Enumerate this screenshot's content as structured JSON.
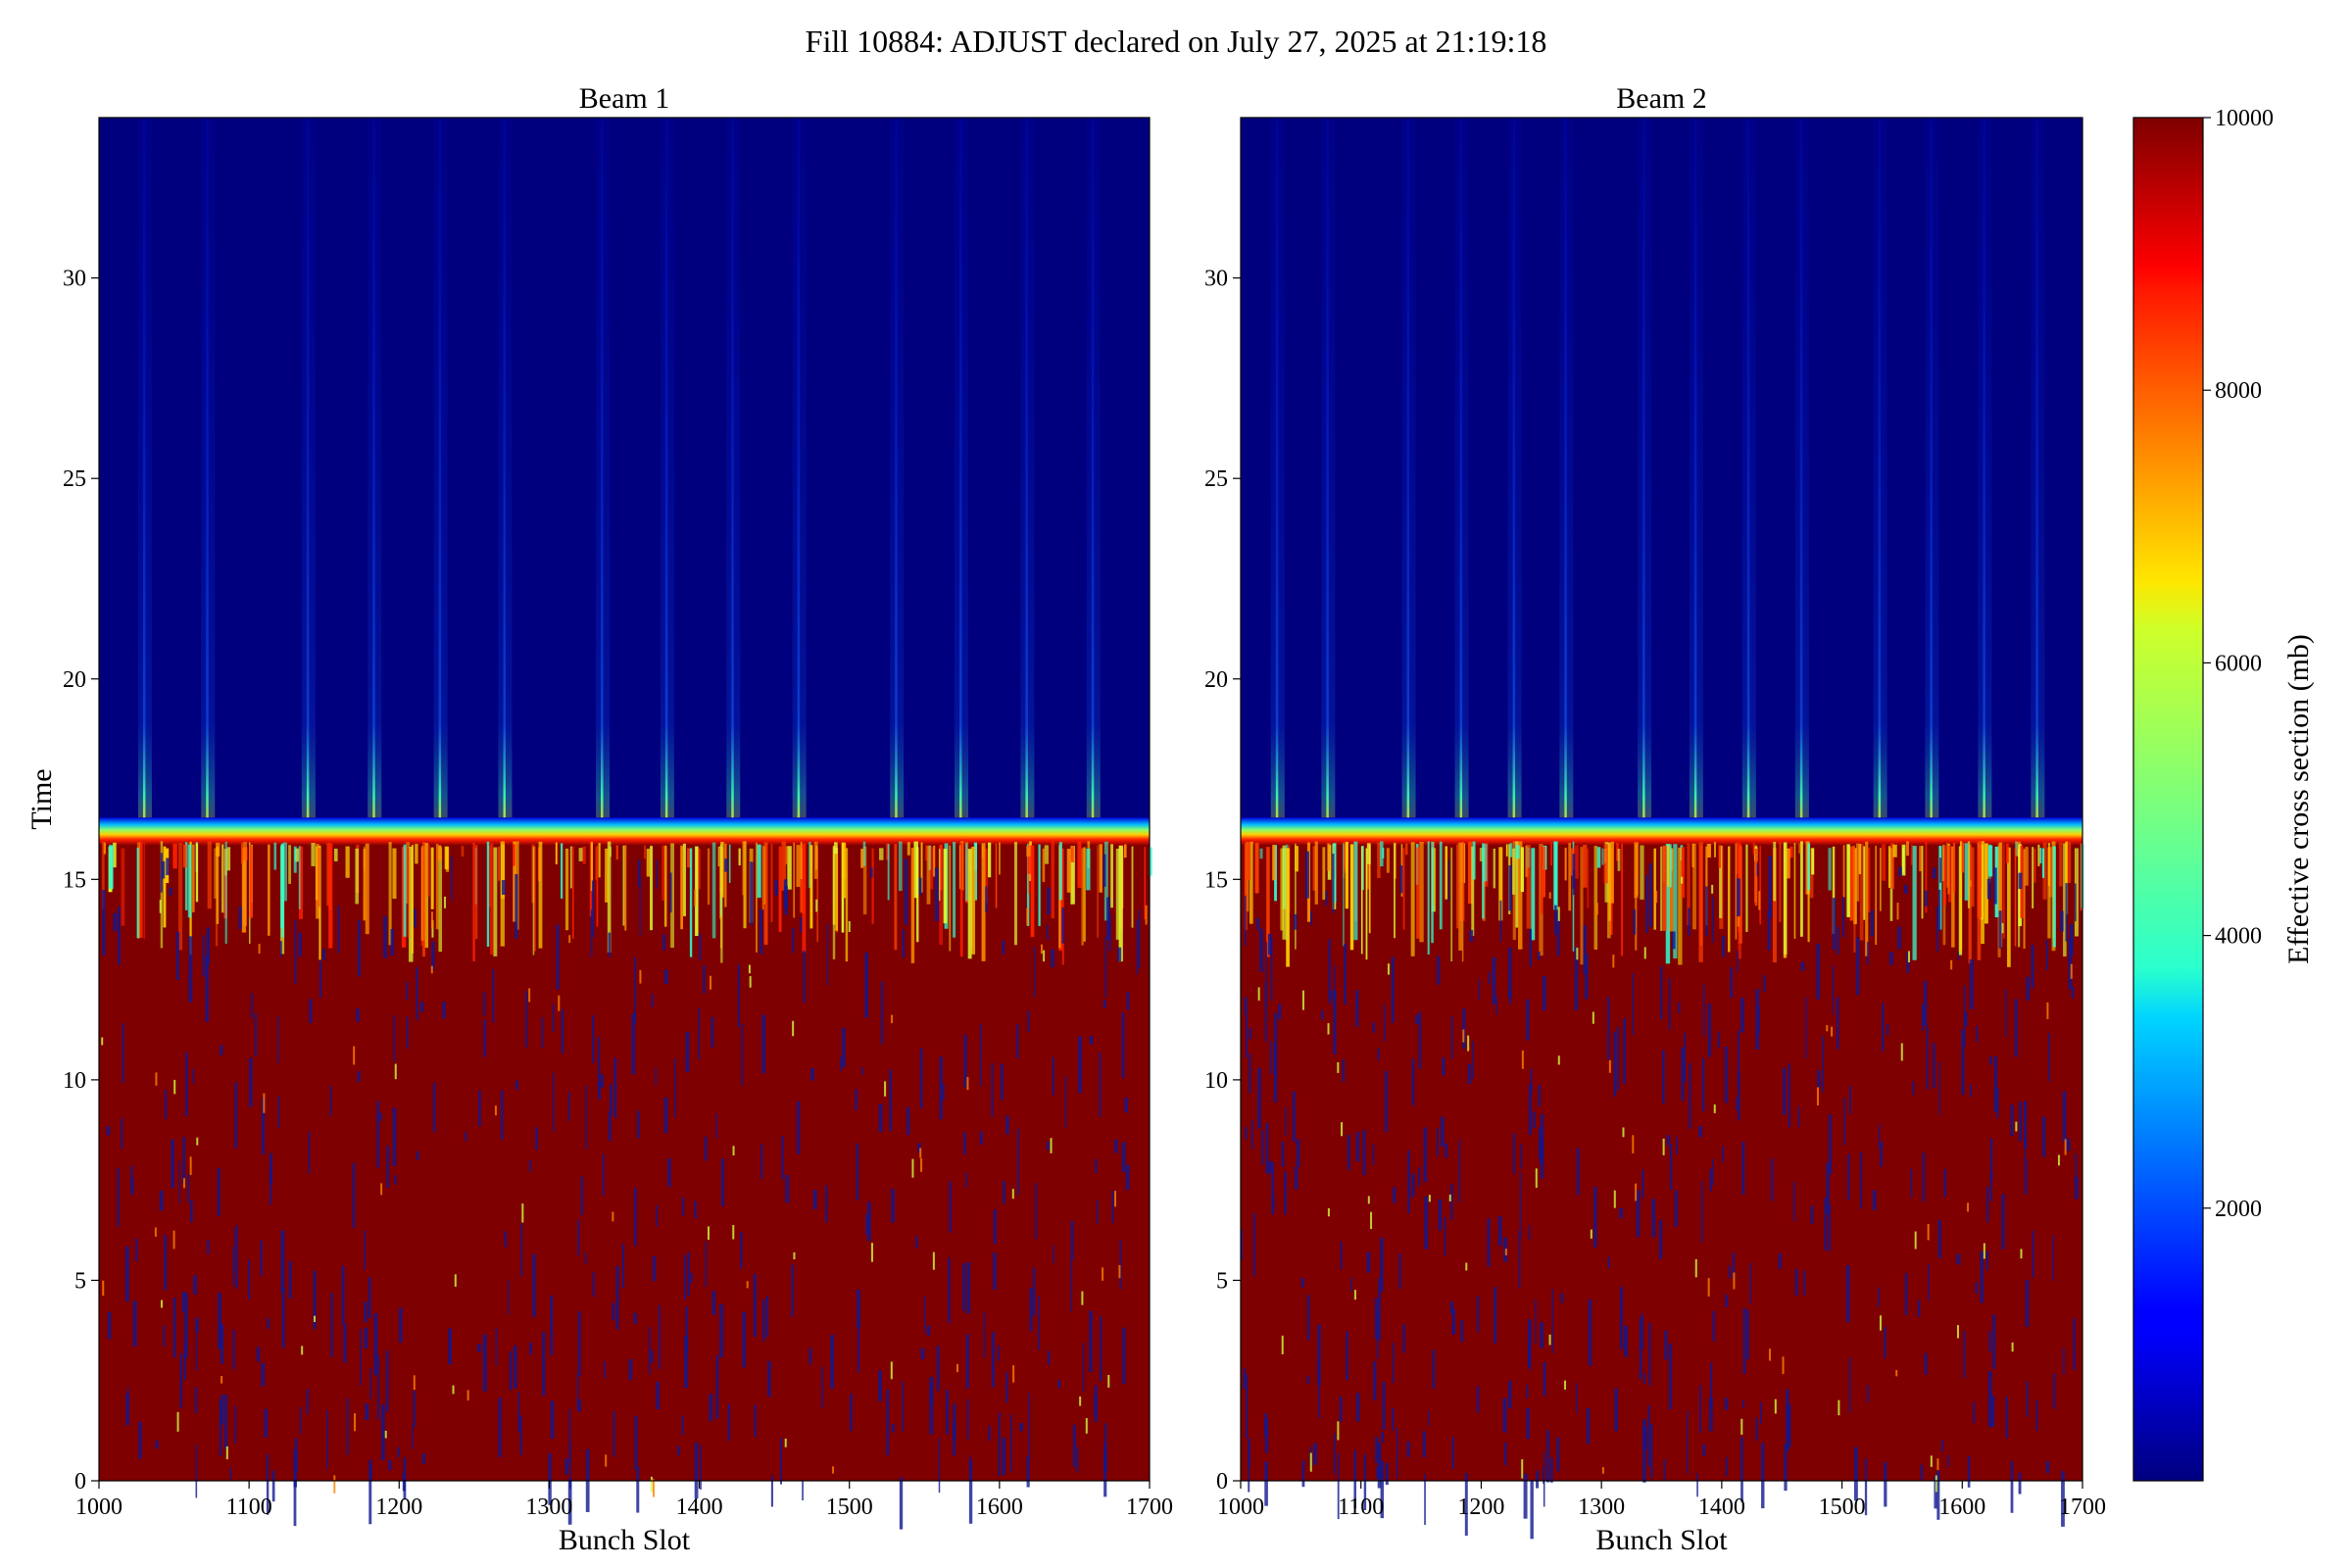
{
  "figure": {
    "title": "Fill 10884: ADJUST declared on July 27, 2025 at 21:19:18"
  },
  "chart_data": [
    {
      "type": "heatmap",
      "title": "Beam 1",
      "xlabel": "Bunch Slot",
      "ylabel": "Time",
      "xlim": [
        1000,
        1700
      ],
      "ylim": [
        0,
        34
      ],
      "xticks": [
        1000,
        1100,
        1200,
        1300,
        1400,
        1500,
        1600,
        1700
      ],
      "yticks": [
        0,
        5,
        10,
        15,
        20,
        25,
        30
      ],
      "colormap": "jet",
      "color_range": [
        0,
        10000
      ],
      "transition_time": 16.2,
      "value_below_transition": 10000,
      "value_above_transition": 0,
      "bright_stripe_bunch_slots": [
        1030,
        1072,
        1139,
        1183,
        1227,
        1270,
        1335,
        1378,
        1422,
        1466,
        1531,
        1574,
        1618,
        1662
      ]
    },
    {
      "type": "heatmap",
      "title": "Beam 2",
      "xlabel": "Bunch Slot",
      "ylabel": "",
      "xlim": [
        1000,
        1700
      ],
      "ylim": [
        0,
        34
      ],
      "xticks": [
        1000,
        1100,
        1200,
        1300,
        1400,
        1500,
        1600,
        1700
      ],
      "yticks": [
        0,
        5,
        10,
        15,
        20,
        25,
        30
      ],
      "colormap": "jet",
      "color_range": [
        0,
        10000
      ],
      "transition_time": 16.2,
      "value_below_transition": 10000,
      "value_above_transition": 0,
      "bright_stripe_bunch_slots": [
        1030,
        1072,
        1139,
        1183,
        1227,
        1270,
        1335,
        1378,
        1422,
        1466,
        1531,
        1574,
        1618,
        1662
      ]
    }
  ],
  "colorbar": {
    "label": "Effective cross section (mb)",
    "ticks": [
      2000,
      4000,
      6000,
      8000,
      10000
    ],
    "range": [
      0,
      10000
    ]
  }
}
